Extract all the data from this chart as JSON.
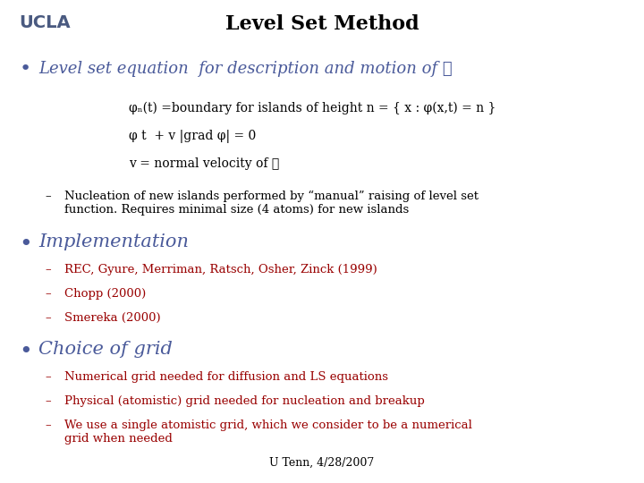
{
  "background_color": "#ffffff",
  "ucla_text": "UCLA",
  "ucla_color": "#4a5a80",
  "ucla_fontsize": 14,
  "title": "Level Set Method",
  "title_color": "#000000",
  "title_fontsize": 16,
  "bullet1_text": "Level set equation  for description and motion of ☞",
  "bullet1_color": "#4a5a9a",
  "bullet1_fontsize": 13,
  "sub1_line1": "φₙ(t) =boundary for islands of height n = { x : φ(x,t) = n }",
  "sub1_line2": "φ t  + v |grad φ| = 0",
  "sub1_line3": "v = normal velocity of ☞",
  "sub1_color": "#000000",
  "sub1_fontsize": 10,
  "dash1_text": "Nucleation of new islands performed by “manual” raising of level set\nfunction. Requires minimal size (4 atoms) for new islands",
  "dash1_color": "#000000",
  "dash1_fontsize": 9.5,
  "bullet2_text": "Implementation",
  "bullet2_color": "#4a5a9a",
  "bullet2_fontsize": 15,
  "sub2_lines": [
    "REC, Gyure, Merriman, Ratsch, Osher, Zinck (1999)",
    "Chopp (2000)",
    "Smereka (2000)"
  ],
  "sub2_color": "#990000",
  "sub2_fontsize": 9.5,
  "bullet3_text": "Choice of grid",
  "bullet3_color": "#4a5a9a",
  "bullet3_fontsize": 15,
  "sub3_lines": [
    "Numerical grid needed for diffusion and LS equations",
    "Physical (atomistic) grid needed for nucleation and breakup",
    "We use a single atomistic grid, which we consider to be a numerical\ngrid when needed"
  ],
  "sub3_color": "#990000",
  "sub3_fontsize": 9.5,
  "footer": "U Tenn, 4/28/2007",
  "footer_color": "#000000",
  "footer_fontsize": 9
}
